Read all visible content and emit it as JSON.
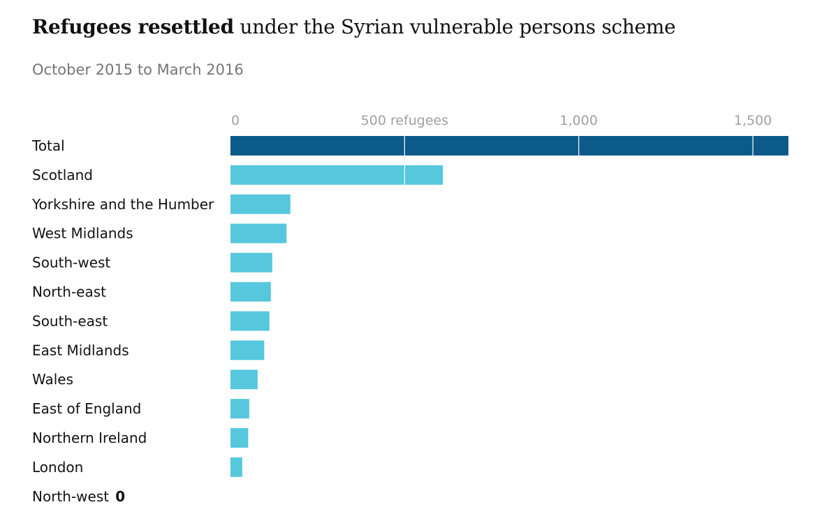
{
  "header": {
    "title_bold": "Refugees resettled",
    "title_rest": " under the Syrian vulnerable persons scheme",
    "subtitle": "October 2015 to March 2016"
  },
  "colors": {
    "total_bar": "#0b5a8a",
    "region_bar": "#56c7dd",
    "gridline": "#ffffff",
    "tick_text": "#a0a0a0"
  },
  "chart_data": {
    "type": "bar",
    "orientation": "horizontal",
    "title": "Refugees resettled under the Syrian vulnerable persons scheme",
    "subtitle": "October 2015 to March 2016",
    "xlabel": "",
    "ylabel": "",
    "xlim": [
      0,
      1602
    ],
    "ticks": [
      {
        "value": 0,
        "label": "0"
      },
      {
        "value": 500,
        "label": "500 refugees"
      },
      {
        "value": 1000,
        "label": "1,000"
      },
      {
        "value": 1500,
        "label": "1,500"
      }
    ],
    "categories": [
      "Total",
      "Scotland",
      "Yorkshire and the Humber",
      "West Midlands",
      "South-west",
      "North-east",
      "South-east",
      "East Midlands",
      "Wales",
      "East of England",
      "Northern Ireland",
      "London",
      "North-west"
    ],
    "values": [
      1602,
      610,
      172,
      161,
      120,
      116,
      112,
      97,
      78,
      54,
      51,
      34,
      0
    ],
    "highlight": [
      "Total"
    ],
    "zero_value_label": "0"
  }
}
